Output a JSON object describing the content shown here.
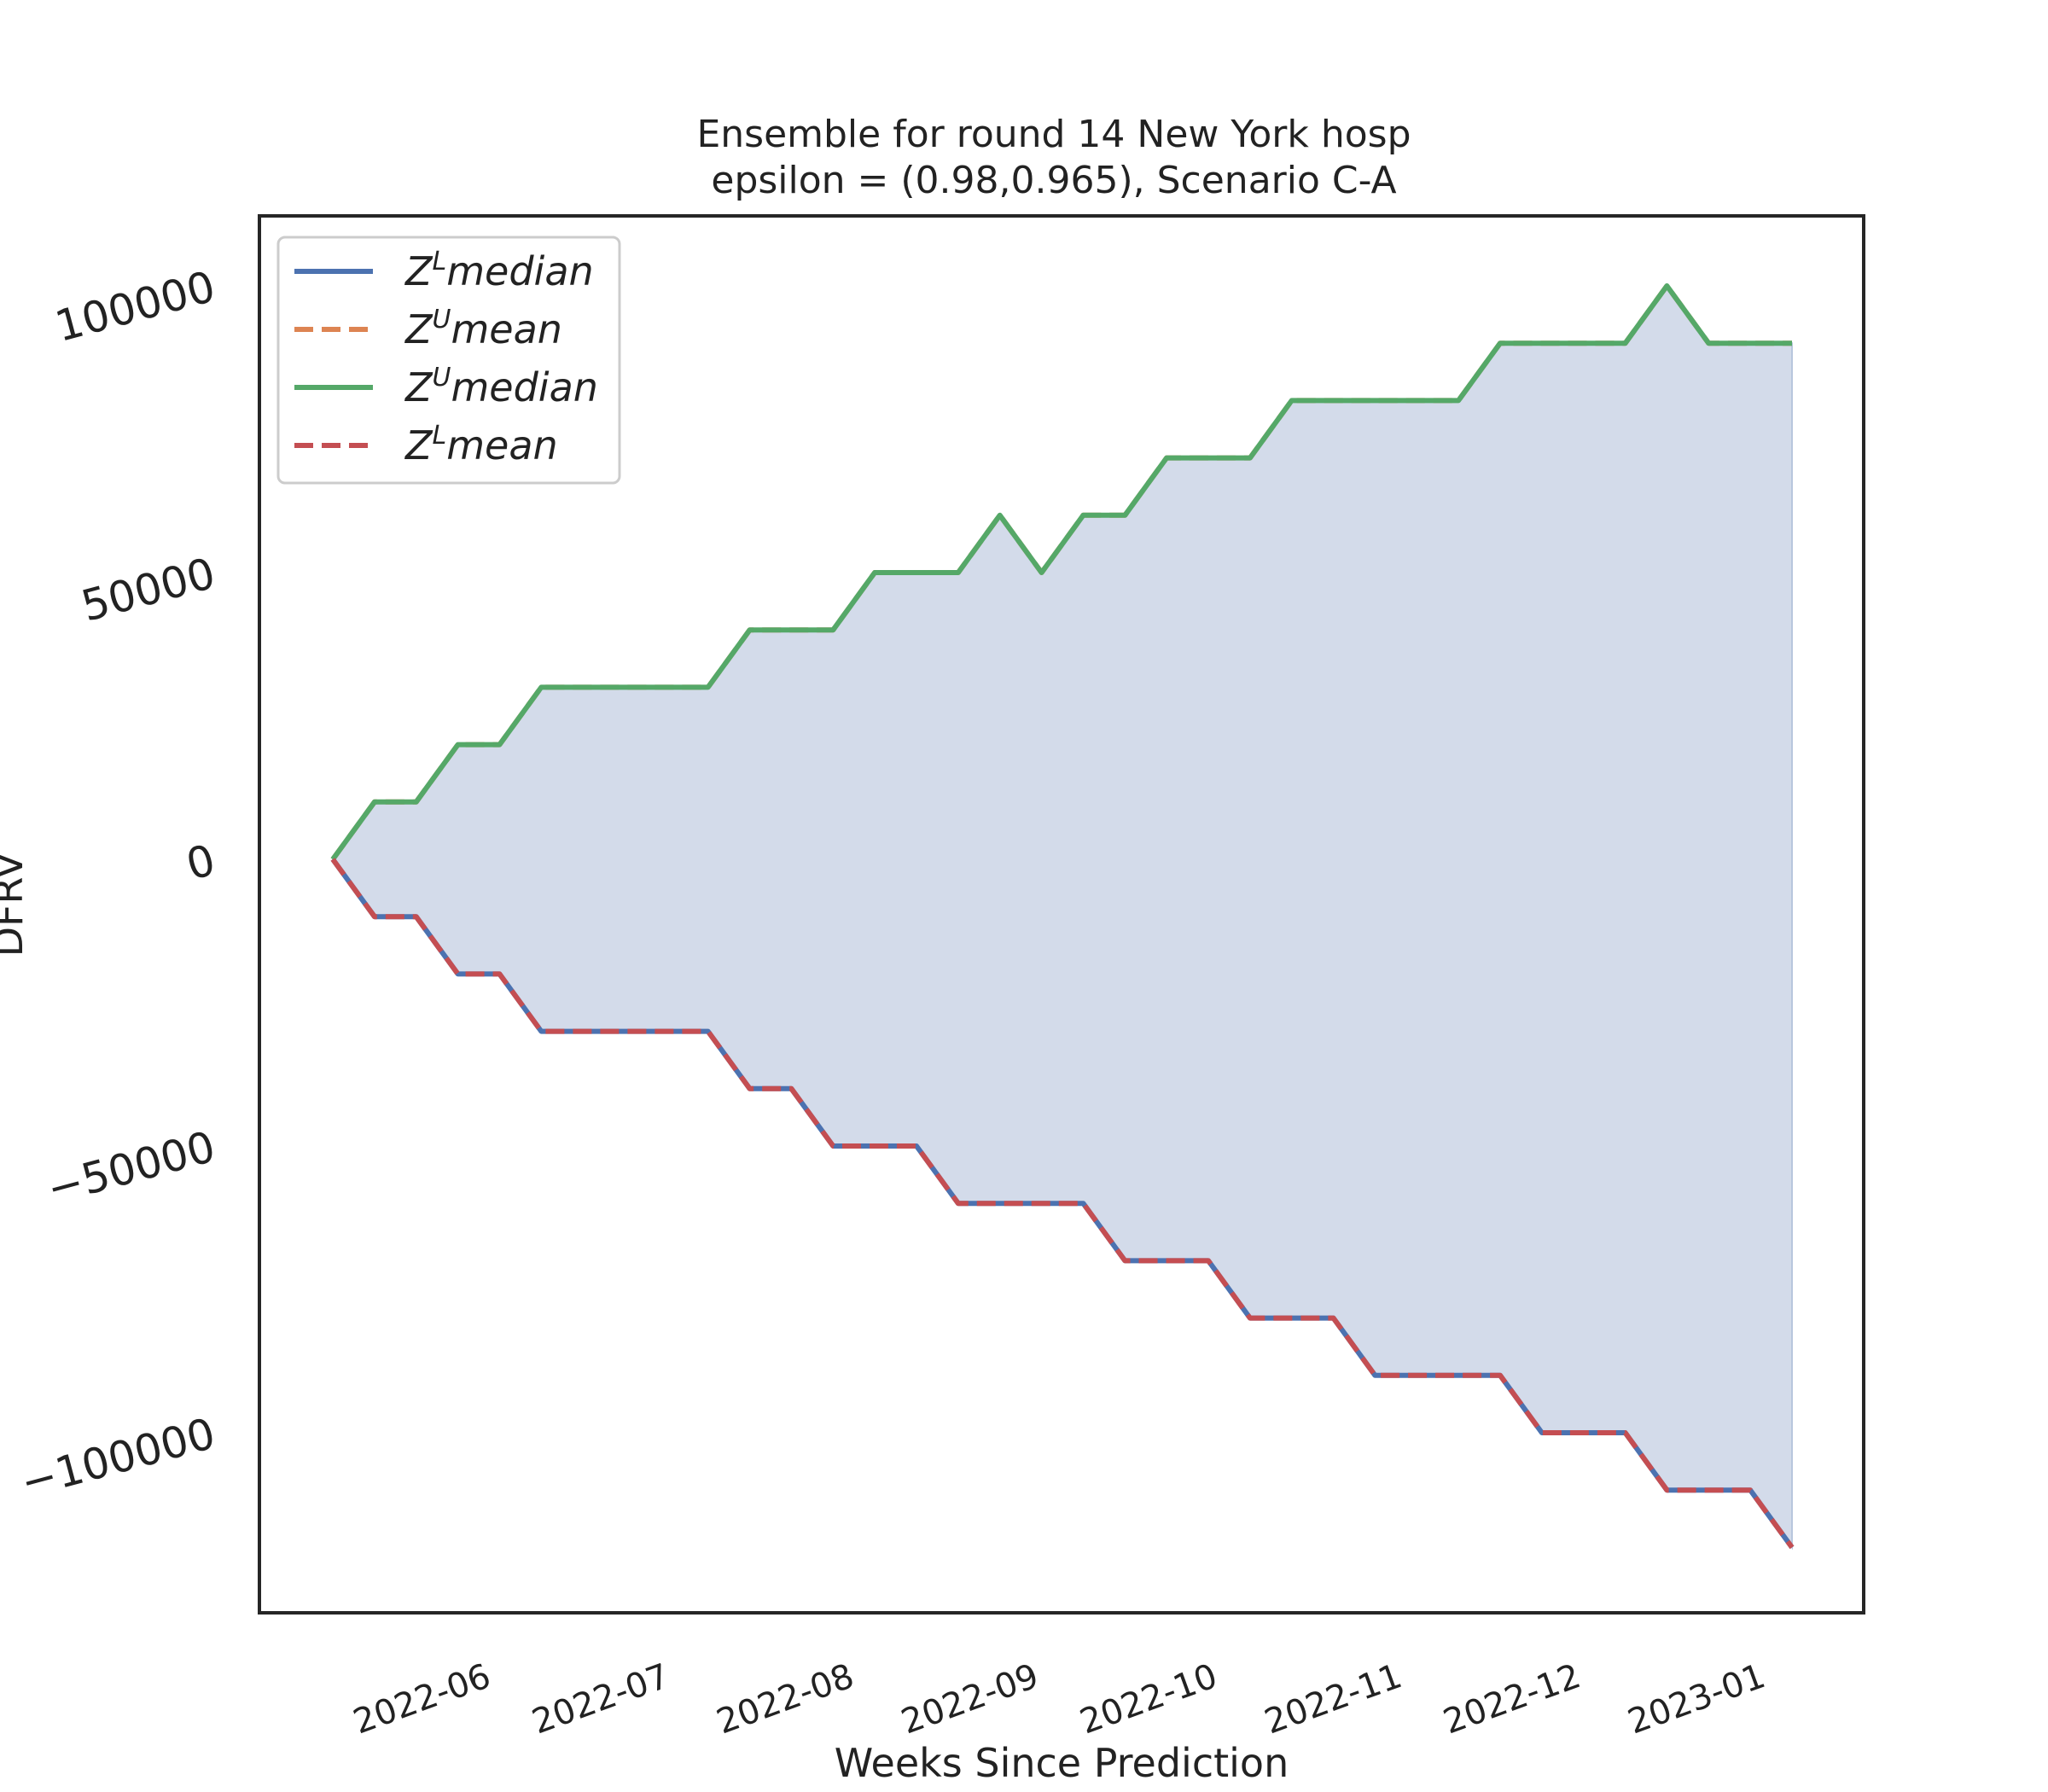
{
  "chart_data": {
    "type": "line",
    "title": "Ensemble for round 14 New York  hosp",
    "subtitle": "epsilon = (0.98,0.965), Scenario C-A",
    "xlabel": "Weeks Since Prediction",
    "ylabel": "DFRV",
    "x_tick_labels": [
      "2022-06",
      "2022-07",
      "2022-08",
      "2022-09",
      "2022-10",
      "2022-11",
      "2022-12",
      "2023-01"
    ],
    "y_ticks": [
      100000,
      50000,
      0,
      -50000,
      -100000
    ],
    "y_tick_labels": [
      "100000",
      "50000",
      "0",
      "−50000",
      "−100000"
    ],
    "ylim": [
      -131000,
      112000
    ],
    "x": [
      "2022-05-13",
      "2022-05-20",
      "2022-05-27",
      "2022-06-03",
      "2022-06-10",
      "2022-06-17",
      "2022-06-24",
      "2022-07-01",
      "2022-07-08",
      "2022-07-15",
      "2022-07-22",
      "2022-07-29",
      "2022-08-05",
      "2022-08-12",
      "2022-08-19",
      "2022-08-26",
      "2022-09-02",
      "2022-09-09",
      "2022-09-16",
      "2022-09-23",
      "2022-09-30",
      "2022-10-07",
      "2022-10-14",
      "2022-10-21",
      "2022-10-28",
      "2022-11-04",
      "2022-11-11",
      "2022-11-18",
      "2022-11-25",
      "2022-12-02",
      "2022-12-09",
      "2022-12-16",
      "2022-12-23",
      "2022-12-30",
      "2023-01-06",
      "2023-01-13"
    ],
    "series": [
      {
        "name": "Z^L median",
        "color": "#4c72b0",
        "style": "solid",
        "values": [
          0,
          -10000,
          -10000,
          -20000,
          -20000,
          -30000,
          -30000,
          -30000,
          -30000,
          -30000,
          -40000,
          -40000,
          -50000,
          -50000,
          -50000,
          -60000,
          -60000,
          -60000,
          -60000,
          -70000,
          -70000,
          -70000,
          -80000,
          -80000,
          -80000,
          -90000,
          -90000,
          -90000,
          -90000,
          -100000,
          -100000,
          -100000,
          -110000,
          -110000,
          -110000,
          -120000
        ]
      },
      {
        "name": "Z^U mean",
        "color": "#dd8452",
        "style": "dashed",
        "values": [
          0,
          10000,
          10000,
          20000,
          20000,
          30000,
          30000,
          30000,
          30000,
          30000,
          40000,
          40000,
          40000,
          50000,
          50000,
          50000,
          60000,
          50000,
          60000,
          60000,
          70000,
          70000,
          70000,
          80000,
          80000,
          80000,
          80000,
          80000,
          90000,
          90000,
          90000,
          90000,
          100000,
          90000,
          90000,
          90000
        ]
      },
      {
        "name": "Z^U median",
        "color": "#55a868",
        "style": "solid",
        "values": [
          0,
          10000,
          10000,
          20000,
          20000,
          30000,
          30000,
          30000,
          30000,
          30000,
          40000,
          40000,
          40000,
          50000,
          50000,
          50000,
          60000,
          50000,
          60000,
          60000,
          70000,
          70000,
          70000,
          80000,
          80000,
          80000,
          80000,
          80000,
          90000,
          90000,
          90000,
          90000,
          100000,
          90000,
          90000,
          90000
        ]
      },
      {
        "name": "Z^L mean",
        "color": "#c44e52",
        "style": "dashed",
        "values": [
          0,
          -10000,
          -10000,
          -20000,
          -20000,
          -30000,
          -30000,
          -30000,
          -30000,
          -30000,
          -40000,
          -40000,
          -50000,
          -50000,
          -50000,
          -60000,
          -60000,
          -60000,
          -60000,
          -70000,
          -70000,
          -70000,
          -80000,
          -80000,
          -80000,
          -90000,
          -90000,
          -90000,
          -90000,
          -100000,
          -100000,
          -100000,
          -110000,
          -110000,
          -110000,
          -120000
        ]
      }
    ],
    "fill_between": {
      "lower": "Z^L median",
      "upper": "Z^U median",
      "color": "#d3dbea"
    },
    "grid": false,
    "legend_position": "top-left",
    "legend": [
      {
        "base": "Z",
        "sup": "L",
        "rest": "median",
        "color": "#4c72b0",
        "style": "solid"
      },
      {
        "base": "Z",
        "sup": "U",
        "rest": "mean",
        "color": "#dd8452",
        "style": "dashed"
      },
      {
        "base": "Z",
        "sup": "U",
        "rest": "median",
        "color": "#55a868",
        "style": "solid"
      },
      {
        "base": "Z",
        "sup": "L",
        "rest": "mean",
        "color": "#c44e52",
        "style": "dashed"
      }
    ]
  }
}
